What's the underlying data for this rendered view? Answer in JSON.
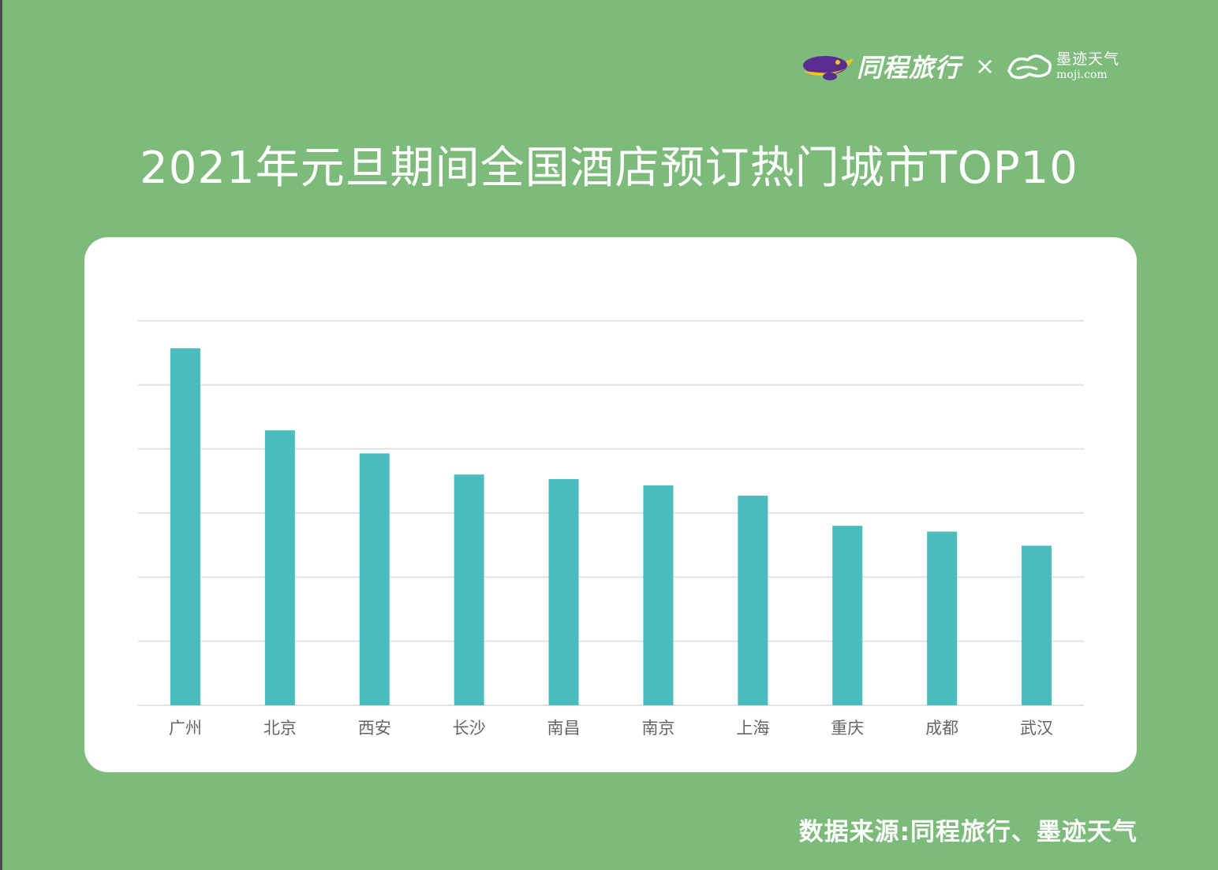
{
  "brand": {
    "primary_logo_text": "同程旅行",
    "separator": "×",
    "partner_logo_text": "墨迹天气",
    "partner_logo_url_text": "moji.com",
    "primary_logo_icon": "tongcheng-bird-icon",
    "partner_logo_icon": "moji-cloud-icon"
  },
  "colors": {
    "background": "#7dbb7a",
    "card": "#ffffff",
    "bar": "#4bbcbd",
    "grid": "#e2e2e2",
    "text_light": "#ffffff",
    "label": "#666666"
  },
  "chart_data": {
    "type": "bar",
    "title": "2021年元旦期间全国酒店预订热门城市TOP10",
    "categories": [
      "广州",
      "北京",
      "西安",
      "长沙",
      "南昌",
      "南京",
      "上海",
      "重庆",
      "成都",
      "武汉"
    ],
    "series": [
      {
        "values": [
          5.57,
          4.29,
          3.93,
          3.6,
          3.53,
          3.43,
          3.27,
          2.8,
          2.71,
          2.49
        ]
      }
    ],
    "ylim": [
      0,
      6
    ],
    "y_ticks": [
      0,
      1,
      2,
      3,
      4,
      5,
      6
    ],
    "y_tick_labels_visible": false,
    "grid": true,
    "legend": "none",
    "xlabel": "",
    "ylabel": ""
  },
  "footer": {
    "source": "数据来源:同程旅行、墨迹天气"
  }
}
